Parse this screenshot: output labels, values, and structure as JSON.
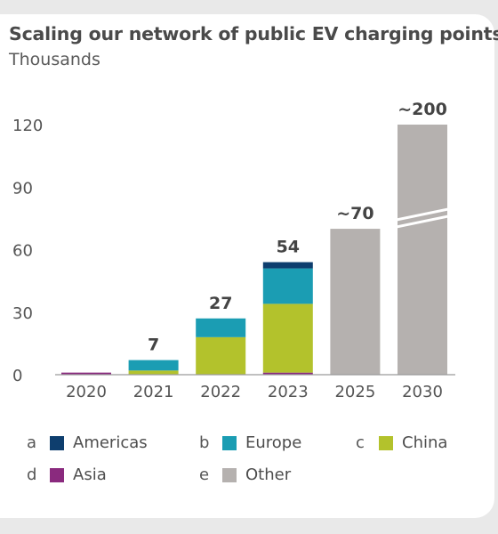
{
  "card": {
    "title": "Scaling our network of public EV charging points",
    "subtitle": "Thousands"
  },
  "chart_data": {
    "type": "bar",
    "stacked": true,
    "title": "Scaling our network of public EV charging points",
    "subtitle": "Thousands",
    "categories": [
      "2020",
      "2021",
      "2022",
      "2023",
      "2025",
      "2030"
    ],
    "ylim": [
      0,
      120
    ],
    "yticks": [
      0,
      30,
      60,
      90,
      120
    ],
    "grid": false,
    "legend_position": "bottom",
    "axis_break": {
      "category": "2030"
    },
    "totals": [
      "",
      "7",
      "27",
      "54",
      "~70",
      "~200"
    ],
    "series": [
      {
        "key": "d",
        "name": "Asia",
        "color": "#8a2a7e",
        "values": [
          1,
          0,
          0,
          1,
          0,
          0
        ]
      },
      {
        "key": "c",
        "name": "China",
        "color": "#b3c22c",
        "values": [
          0,
          2,
          18,
          33,
          0,
          0
        ]
      },
      {
        "key": "b",
        "name": "Europe",
        "color": "#1b9db3",
        "values": [
          0,
          5,
          9,
          17,
          0,
          0
        ]
      },
      {
        "key": "a",
        "name": "Americas",
        "color": "#0e3e6e",
        "values": [
          0,
          0,
          0,
          3,
          0,
          0
        ]
      },
      {
        "key": "e",
        "name": "Other",
        "color": "#b5b1af",
        "values": [
          0,
          0,
          0,
          0,
          70,
          200
        ]
      }
    ]
  },
  "legend": [
    {
      "letter": "a",
      "name": "Americas",
      "color": "#0e3e6e"
    },
    {
      "letter": "b",
      "name": "Europe",
      "color": "#1b9db3"
    },
    {
      "letter": "c",
      "name": "China",
      "color": "#b3c22c"
    },
    {
      "letter": "d",
      "name": "Asia",
      "color": "#8a2a7e"
    },
    {
      "letter": "e",
      "name": "Other",
      "color": "#b5b1af"
    }
  ]
}
